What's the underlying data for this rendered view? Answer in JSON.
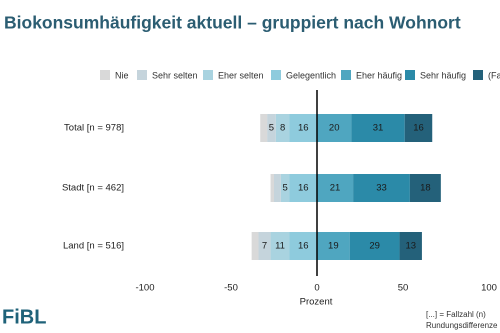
{
  "chart_data": {
    "type": "diverging_bar",
    "title": "Biokonsumhäufigkeit aktuell – gruppiert nach Wohnort",
    "categories": [
      "Total [n = 978]",
      "Stadt [n = 462]",
      "Land [n = 516]"
    ],
    "series": [
      {
        "name": "Nie",
        "color": "#d9d9d9",
        "values": [
          4,
          2,
          4
        ]
      },
      {
        "name": "Sehr selten",
        "color": "#c5d4dc",
        "values": [
          5,
          4,
          7
        ]
      },
      {
        "name": "Eher selten",
        "color": "#a9d3e0",
        "values": [
          8,
          5,
          11
        ]
      },
      {
        "name": "Gelegentlich",
        "color": "#8ecbdd",
        "values": [
          16,
          16,
          16
        ]
      },
      {
        "name": "Eher häufig",
        "color": "#4fa6c0",
        "values": [
          20,
          21,
          19
        ]
      },
      {
        "name": "Sehr häufig",
        "color": "#2b8aa8",
        "values": [
          31,
          33,
          29
        ]
      },
      {
        "name": "(Fas",
        "color": "#24617a",
        "values": [
          16,
          18,
          13
        ]
      }
    ],
    "xlim": [
      -100,
      100
    ],
    "xticks": [
      -100,
      -50,
      0,
      50,
      100
    ],
    "xlabel": "Prozent",
    "logo": "FiBL",
    "footnotes": [
      "[...] = Fallzahl (n)",
      "Rundungsdifferenze"
    ]
  }
}
